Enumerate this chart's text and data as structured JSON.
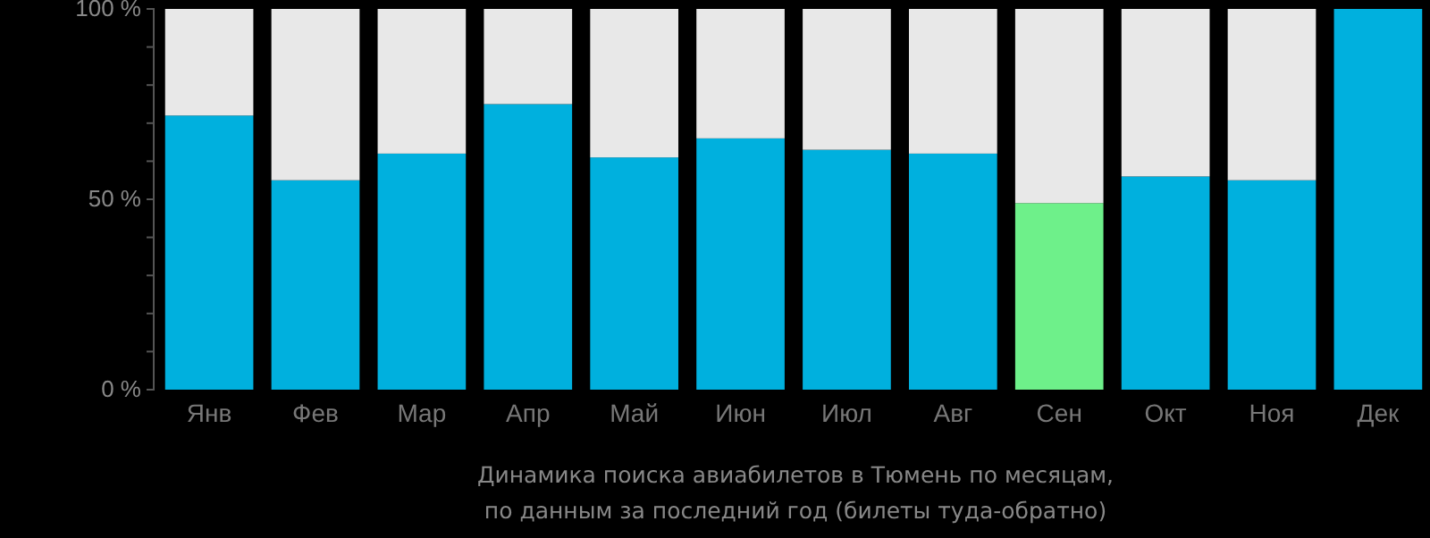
{
  "chart_data": {
    "type": "bar",
    "stacked": true,
    "categories": [
      "Янв",
      "Фев",
      "Мар",
      "Апр",
      "Май",
      "Июн",
      "Июл",
      "Авг",
      "Сен",
      "Окт",
      "Ноя",
      "Дек"
    ],
    "series": [
      {
        "color": "#00b0de",
        "colors": [
          null,
          null,
          null,
          null,
          null,
          null,
          null,
          null,
          "#6ef08a",
          null,
          null,
          null
        ],
        "values": [
          72,
          55,
          62,
          75,
          61,
          66,
          63,
          62,
          49,
          56,
          55,
          100
        ]
      },
      {
        "color": "#e8e8e8",
        "values": [
          28,
          45,
          38,
          25,
          39,
          34,
          37,
          38,
          51,
          44,
          45,
          0
        ]
      }
    ],
    "ylim": [
      0,
      100
    ],
    "yticks": [
      {
        "value": 0,
        "label": "0 %"
      },
      {
        "value": 10,
        "label": null
      },
      {
        "value": 20,
        "label": null
      },
      {
        "value": 30,
        "label": null
      },
      {
        "value": 40,
        "label": null
      },
      {
        "value": 50,
        "label": "50 %"
      },
      {
        "value": 60,
        "label": null
      },
      {
        "value": 70,
        "label": null
      },
      {
        "value": 80,
        "label": null
      },
      {
        "value": 90,
        "label": null
      },
      {
        "value": 100,
        "label": "100 %"
      }
    ],
    "annotations": [
      "Динамика поиска авиабилетов в Тюмень по месяцам,",
      "по данным за последний год (билеты туда-обратно)"
    ]
  }
}
